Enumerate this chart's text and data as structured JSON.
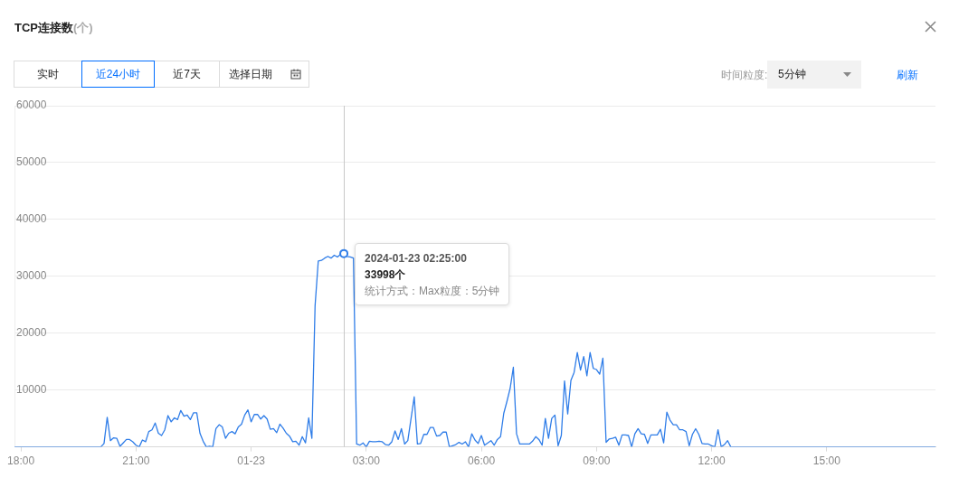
{
  "chart_data": {
    "type": "line",
    "title": "TCP连接数(个)",
    "color": "#2f7de8",
    "x": [
      "2024-01-22T17:50",
      "2024-01-22T20:05",
      "2024-01-22T20:10",
      "2024-01-22T20:15",
      "2024-01-22T20:20",
      "2024-01-22T20:25",
      "2024-01-22T20:30",
      "2024-01-22T20:35",
      "2024-01-22T20:40",
      "2024-01-22T20:45",
      "2024-01-22T20:50",
      "2024-01-22T20:55",
      "2024-01-22T21:00",
      "2024-01-22T21:05",
      "2024-01-22T21:10",
      "2024-01-22T21:15",
      "2024-01-22T21:20",
      "2024-01-22T21:25",
      "2024-01-22T21:30",
      "2024-01-22T21:35",
      "2024-01-22T21:40",
      "2024-01-22T21:45",
      "2024-01-22T21:50",
      "2024-01-22T21:55",
      "2024-01-22T22:00",
      "2024-01-22T22:05",
      "2024-01-22T22:10",
      "2024-01-22T22:15",
      "2024-01-22T22:20",
      "2024-01-22T22:25",
      "2024-01-22T22:30",
      "2024-01-22T22:35",
      "2024-01-22T22:40",
      "2024-01-22T22:45",
      "2024-01-22T22:50",
      "2024-01-22T22:55",
      "2024-01-22T23:00",
      "2024-01-22T23:05",
      "2024-01-22T23:10",
      "2024-01-22T23:15",
      "2024-01-22T23:20",
      "2024-01-22T23:25",
      "2024-01-22T23:30",
      "2024-01-22T23:35",
      "2024-01-22T23:40",
      "2024-01-22T23:45",
      "2024-01-22T23:50",
      "2024-01-22T23:55",
      "2024-01-23T00:00",
      "2024-01-23T00:05",
      "2024-01-23T00:10",
      "2024-01-23T00:15",
      "2024-01-23T00:20",
      "2024-01-23T00:25",
      "2024-01-23T00:30",
      "2024-01-23T00:35",
      "2024-01-23T00:40",
      "2024-01-23T00:45",
      "2024-01-23T00:50",
      "2024-01-23T00:55",
      "2024-01-23T01:00",
      "2024-01-23T01:05",
      "2024-01-23T01:10",
      "2024-01-23T01:15",
      "2024-01-23T01:20",
      "2024-01-23T01:25",
      "2024-01-23T01:30",
      "2024-01-23T01:35",
      "2024-01-23T01:40",
      "2024-01-23T01:45",
      "2024-01-23T01:50",
      "2024-01-23T01:55",
      "2024-01-23T02:00",
      "2024-01-23T02:05",
      "2024-01-23T02:10",
      "2024-01-23T02:15",
      "2024-01-23T02:20",
      "2024-01-23T02:25",
      "2024-01-23T02:30",
      "2024-01-23T02:35",
      "2024-01-23T02:40",
      "2024-01-23T02:45",
      "2024-01-23T02:50",
      "2024-01-23T02:55",
      "2024-01-23T03:00",
      "2024-01-23T03:05",
      "2024-01-23T03:10",
      "2024-01-23T03:15",
      "2024-01-23T03:20",
      "2024-01-23T03:25",
      "2024-01-23T03:30",
      "2024-01-23T03:35",
      "2024-01-23T03:40",
      "2024-01-23T03:45",
      "2024-01-23T03:50",
      "2024-01-23T03:55",
      "2024-01-23T04:00",
      "2024-01-23T04:05",
      "2024-01-23T04:15",
      "2024-01-23T04:20",
      "2024-01-23T04:25",
      "2024-01-23T04:30",
      "2024-01-23T04:35",
      "2024-01-23T04:40",
      "2024-01-23T04:45",
      "2024-01-23T04:50",
      "2024-01-23T04:55",
      "2024-01-23T05:00",
      "2024-01-23T05:05",
      "2024-01-23T05:10",
      "2024-01-23T05:15",
      "2024-01-23T05:20",
      "2024-01-23T05:25",
      "2024-01-23T05:30",
      "2024-01-23T05:35",
      "2024-01-23T05:40",
      "2024-01-23T05:45",
      "2024-01-23T05:50",
      "2024-01-23T05:55",
      "2024-01-23T06:00",
      "2024-01-23T06:05",
      "2024-01-23T06:10",
      "2024-01-23T06:15",
      "2024-01-23T06:20",
      "2024-01-23T06:25",
      "2024-01-23T06:30",
      "2024-01-23T06:35",
      "2024-01-23T06:40",
      "2024-01-23T06:45",
      "2024-01-23T06:50",
      "2024-01-23T06:55",
      "2024-01-23T07:00",
      "2024-01-23T07:05",
      "2024-01-23T07:10",
      "2024-01-23T07:15",
      "2024-01-23T07:20",
      "2024-01-23T07:25",
      "2024-01-23T07:30",
      "2024-01-23T07:35",
      "2024-01-23T07:40",
      "2024-01-23T07:45",
      "2024-01-23T07:50",
      "2024-01-23T07:55",
      "2024-01-23T08:00",
      "2024-01-23T08:05",
      "2024-01-23T08:10",
      "2024-01-23T08:15",
      "2024-01-23T08:20",
      "2024-01-23T08:25",
      "2024-01-23T08:30",
      "2024-01-23T08:35",
      "2024-01-23T08:40",
      "2024-01-23T08:45",
      "2024-01-23T08:50",
      "2024-01-23T08:55",
      "2024-01-23T09:00",
      "2024-01-23T09:05",
      "2024-01-23T09:10",
      "2024-01-23T09:15",
      "2024-01-23T09:20",
      "2024-01-23T09:25",
      "2024-01-23T09:30",
      "2024-01-23T09:35",
      "2024-01-23T09:40",
      "2024-01-23T09:45",
      "2024-01-23T09:50",
      "2024-01-23T09:55",
      "2024-01-23T10:00",
      "2024-01-23T10:05",
      "2024-01-23T10:10",
      "2024-01-23T10:15",
      "2024-01-23T10:20",
      "2024-01-23T10:25",
      "2024-01-23T10:30",
      "2024-01-23T10:35",
      "2024-01-23T10:40",
      "2024-01-23T10:45",
      "2024-01-23T10:50",
      "2024-01-23T10:55",
      "2024-01-23T11:00",
      "2024-01-23T11:05",
      "2024-01-23T11:10",
      "2024-01-23T11:15",
      "2024-01-23T11:20",
      "2024-01-23T11:25",
      "2024-01-23T11:30",
      "2024-01-23T11:35",
      "2024-01-23T11:40",
      "2024-01-23T11:45",
      "2024-01-23T11:50",
      "2024-01-23T11:55",
      "2024-01-23T12:00",
      "2024-01-23T12:05",
      "2024-01-23T12:10",
      "2024-01-23T12:15",
      "2024-01-23T12:20",
      "2024-01-23T12:25",
      "2024-01-23T12:30",
      "2024-01-23T17:50"
    ],
    "values": [
      0,
      0,
      600,
      5200,
      1100,
      1600,
      1500,
      100,
      700,
      1300,
      1300,
      900,
      300,
      0,
      1200,
      900,
      2700,
      3000,
      4200,
      2400,
      2000,
      3000,
      5500,
      4400,
      5100,
      4800,
      6400,
      5400,
      5600,
      4800,
      6000,
      6000,
      2400,
      1000,
      0,
      100,
      0,
      3200,
      3900,
      3500,
      1500,
      2400,
      2700,
      2300,
      3500,
      4000,
      5600,
      6500,
      4400,
      5700,
      5700,
      4900,
      5500,
      4900,
      3100,
      3200,
      2500,
      4000,
      3300,
      2400,
      1900,
      900,
      1000,
      300,
      1800,
      700,
      5100,
      1500,
      24800,
      32700,
      32800,
      33200,
      33500,
      33200,
      33700,
      33400,
      33900,
      33998,
      33500,
      33400,
      33200,
      500,
      300,
      700,
      0,
      1000,
      900,
      900,
      1000,
      900,
      400,
      300,
      900,
      2800,
      1300,
      3200,
      500,
      1100,
      8800,
      500,
      600,
      2200,
      2200,
      3400,
      3400,
      1900,
      2000,
      2600,
      2600,
      0,
      200,
      400,
      800,
      500,
      900,
      0,
      2300,
      1200,
      600,
      2000,
      300,
      700,
      1100,
      300,
      1300,
      1800,
      5900,
      8000,
      10300,
      14000,
      2300,
      500,
      500,
      500,
      500,
      1000,
      1800,
      1300,
      300,
      5000,
      1500,
      5000,
      5600,
      200,
      2000,
      11600,
      5800,
      11700,
      13100,
      16600,
      13500,
      15900,
      12500,
      16600,
      13800,
      13600,
      12800,
      15600,
      800,
      1400,
      1500,
      1700,
      300,
      2100,
      2100,
      2000,
      0,
      2300,
      3200,
      2300,
      2200,
      600,
      2100,
      2100,
      2100,
      3100,
      700,
      6100,
      4700,
      3900,
      3900,
      3000,
      3000,
      2700,
      200,
      2200,
      3200,
      2200,
      600,
      500,
      500,
      200,
      0,
      3000,
      0,
      400,
      1100,
      0,
      0
    ],
    "xlim": [
      "2024-01-22T17:50",
      "2024-01-23T17:50"
    ],
    "xticks": [
      {
        "value": "2024-01-22T18:00",
        "label": "18:00"
      },
      {
        "value": "2024-01-22T21:00",
        "label": "21:00"
      },
      {
        "value": "2024-01-23T00:00",
        "label": "01-23"
      },
      {
        "value": "2024-01-23T03:00",
        "label": "03:00"
      },
      {
        "value": "2024-01-23T06:00",
        "label": "06:00"
      },
      {
        "value": "2024-01-23T09:00",
        "label": "09:00"
      },
      {
        "value": "2024-01-23T12:00",
        "label": "12:00"
      },
      {
        "value": "2024-01-23T15:00",
        "label": "15:00"
      }
    ],
    "ylim": [
      0,
      60000
    ],
    "yticks": [
      10000,
      20000,
      30000,
      40000,
      50000,
      60000
    ],
    "grid": "y",
    "ref_lines": [
      {
        "axis": "x",
        "value": "2024-01-23T02:25",
        "color": "#c8c8c8"
      }
    ],
    "annotations": [
      "实时",
      "近24小时",
      "近7天",
      "选择日期",
      "时间粒度:",
      "5分钟",
      "刷新",
      {
        "text": "2024-01-23 02:25:00",
        "x": "2024-01-23T02:25",
        "y": 33998
      },
      {
        "text": "33998个",
        "x": "2024-01-23T02:25",
        "y": 33998
      },
      "统计方式：Max粒度：5分钟"
    ]
  }
}
